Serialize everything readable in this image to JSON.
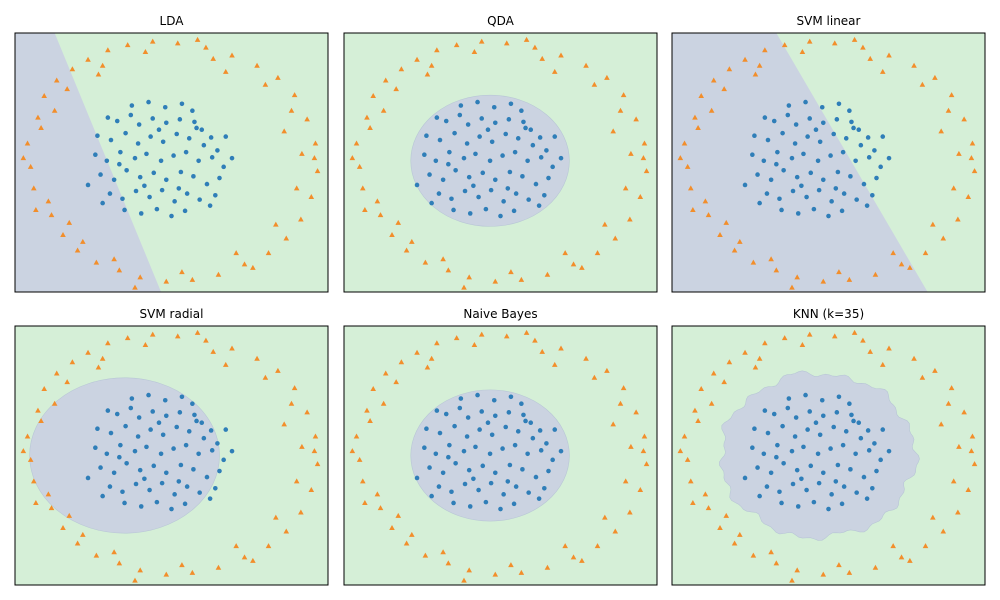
{
  "colors": {
    "region_inner": "#cbd3e1",
    "region_outer": "#d5efd7",
    "inner_points": "#2f7eb8",
    "outer_points": "#f28e2b",
    "frame": "#000000"
  },
  "chart_data": [
    {
      "type": "scatter",
      "title": "LDA",
      "boundary": "linear",
      "xlim": [
        -1.5,
        1.5
      ],
      "ylim": [
        -1.5,
        1.5
      ],
      "grid": false,
      "ticks": false,
      "line_points": [
        [
          -1.12,
          1.5
        ],
        [
          -0.1,
          -1.5
        ]
      ]
    },
    {
      "type": "scatter",
      "title": "QDA",
      "boundary": "ellipse",
      "xlim": [
        -1.5,
        1.5
      ],
      "ylim": [
        -1.5,
        1.5
      ],
      "grid": false,
      "ticks": false,
      "ellipse": {
        "cx": -0.1,
        "cy": 0.02,
        "rx": 0.76,
        "ry": 0.76
      }
    },
    {
      "type": "scatter",
      "title": "SVM linear",
      "boundary": "linear",
      "xlim": [
        -1.5,
        1.5
      ],
      "ylim": [
        -1.5,
        1.5
      ],
      "grid": false,
      "ticks": false,
      "line_points": [
        [
          -0.5,
          1.5
        ],
        [
          0.95,
          -1.5
        ]
      ]
    },
    {
      "type": "scatter",
      "title": "SVM radial",
      "boundary": "ellipse",
      "xlim": [
        -1.5,
        1.5
      ],
      "ylim": [
        -1.5,
        1.5
      ],
      "grid": false,
      "ticks": false,
      "ellipse": {
        "cx": -0.45,
        "cy": 0.0,
        "rx": 0.91,
        "ry": 0.9
      }
    },
    {
      "type": "scatter",
      "title": "Naive Bayes",
      "boundary": "ellipse",
      "xlim": [
        -1.5,
        1.5
      ],
      "ylim": [
        -1.5,
        1.5
      ],
      "grid": false,
      "ticks": false,
      "ellipse": {
        "cx": -0.1,
        "cy": 0.0,
        "rx": 0.76,
        "ry": 0.76
      }
    },
    {
      "type": "scatter",
      "title": "KNN (k=35)",
      "boundary": "blob",
      "xlim": [
        -1.5,
        1.5
      ],
      "ylim": [
        -1.5,
        1.5
      ],
      "grid": false,
      "ticks": false,
      "ellipse": {
        "cx": -0.1,
        "cy": 0.0,
        "rx": 0.93,
        "ry": 0.95
      }
    }
  ],
  "points": {
    "inner": [
      [
        -0.61,
        0.52
      ],
      [
        -0.52,
        0.48
      ],
      [
        -0.39,
        0.55
      ],
      [
        -0.31,
        0.44
      ],
      [
        -0.18,
        0.51
      ],
      [
        -0.05,
        0.46
      ],
      [
        0.08,
        0.5
      ],
      [
        0.22,
        0.47
      ],
      [
        0.29,
        0.38
      ],
      [
        0.38,
        0.29
      ],
      [
        -0.71,
        0.31
      ],
      [
        -0.58,
        0.26
      ],
      [
        -0.44,
        0.34
      ],
      [
        -0.32,
        0.22
      ],
      [
        -0.2,
        0.3
      ],
      [
        -0.08,
        0.24
      ],
      [
        0.05,
        0.33
      ],
      [
        0.17,
        0.28
      ],
      [
        0.31,
        0.2
      ],
      [
        0.44,
        0.14
      ],
      [
        -0.73,
        0.09
      ],
      [
        -0.62,
        0.02
      ],
      [
        -0.49,
        0.12
      ],
      [
        -0.35,
        0.05
      ],
      [
        -0.24,
        0.1
      ],
      [
        -0.1,
        0.02
      ],
      [
        0.02,
        0.08
      ],
      [
        0.14,
        0.12
      ],
      [
        0.26,
        0.02
      ],
      [
        0.39,
        0.06
      ],
      [
        0.5,
        -0.05
      ],
      [
        -0.68,
        -0.14
      ],
      [
        -0.55,
        -0.2
      ],
      [
        -0.43,
        -0.09
      ],
      [
        -0.3,
        -0.17
      ],
      [
        -0.17,
        -0.12
      ],
      [
        -0.05,
        -0.2
      ],
      [
        0.09,
        -0.11
      ],
      [
        0.21,
        -0.16
      ],
      [
        0.34,
        -0.25
      ],
      [
        0.46,
        -0.18
      ],
      [
        -0.59,
        -0.36
      ],
      [
        -0.47,
        -0.42
      ],
      [
        -0.34,
        -0.33
      ],
      [
        -0.21,
        -0.4
      ],
      [
        -0.09,
        -0.32
      ],
      [
        0.03,
        -0.45
      ],
      [
        0.15,
        -0.36
      ],
      [
        0.27,
        -0.43
      ],
      [
        0.37,
        -0.5
      ],
      [
        -0.45,
        -0.55
      ],
      [
        -0.29,
        -0.59
      ],
      [
        -0.14,
        -0.54
      ],
      [
        0.0,
        -0.62
      ],
      [
        0.13,
        -0.56
      ],
      [
        -0.38,
        0.66
      ],
      [
        -0.22,
        0.7
      ],
      [
        -0.06,
        0.64
      ],
      [
        0.1,
        0.68
      ],
      [
        0.2,
        0.6
      ],
      [
        -0.8,
        -0.26
      ],
      [
        -0.66,
        -0.47
      ],
      [
        0.58,
        0.05
      ],
      [
        0.52,
        0.3
      ],
      [
        -0.12,
        0.38
      ],
      [
        0.42,
        -0.38
      ],
      [
        -0.5,
        -0.02
      ],
      [
        0.07,
        -0.3
      ],
      [
        -0.26,
        -0.27
      ],
      [
        0.24,
        0.4
      ]
    ],
    "outer": [
      [
        -1.38,
        0.22
      ],
      [
        -1.35,
        -0.05
      ],
      [
        -1.32,
        -0.3
      ],
      [
        -1.28,
        0.52
      ],
      [
        -1.22,
        0.77
      ],
      [
        -1.15,
        -0.61
      ],
      [
        -1.1,
        0.95
      ],
      [
        -1.04,
        -0.84
      ],
      [
        -0.95,
        1.08
      ],
      [
        -0.9,
        -1.02
      ],
      [
        -0.8,
        1.19
      ],
      [
        -0.72,
        -1.16
      ],
      [
        -0.61,
        1.3
      ],
      [
        -0.5,
        -1.25
      ],
      [
        -0.42,
        1.36
      ],
      [
        -0.3,
        -1.33
      ],
      [
        -0.18,
        1.4
      ],
      [
        -0.05,
        -1.38
      ],
      [
        0.06,
        1.38
      ],
      [
        0.2,
        -1.36
      ],
      [
        0.33,
        1.33
      ],
      [
        0.45,
        -1.3
      ],
      [
        0.58,
        1.24
      ],
      [
        0.7,
        -1.18
      ],
      [
        0.82,
        1.12
      ],
      [
        0.93,
        -1.05
      ],
      [
        1.02,
        0.98
      ],
      [
        1.1,
        -0.88
      ],
      [
        1.18,
        0.78
      ],
      [
        1.24,
        -0.66
      ],
      [
        1.3,
        0.5
      ],
      [
        1.34,
        -0.4
      ],
      [
        1.38,
        0.22
      ],
      [
        1.4,
        -0.1
      ],
      [
        1.37,
        0.05
      ],
      [
        -1.25,
        0.4
      ],
      [
        -1.18,
        -0.45
      ],
      [
        -1.0,
        0.85
      ],
      [
        -0.85,
        -0.92
      ],
      [
        -0.66,
        1.12
      ],
      [
        -0.55,
        -1.12
      ],
      [
        -0.25,
        1.28
      ],
      [
        0.1,
        -1.27
      ],
      [
        0.4,
        1.2
      ],
      [
        0.62,
        -1.05
      ],
      [
        0.9,
        0.9
      ],
      [
        1.0,
        -0.72
      ],
      [
        1.15,
        0.6
      ],
      [
        1.2,
        -0.3
      ],
      [
        1.25,
        0.1
      ],
      [
        -1.42,
        0.05
      ],
      [
        -1.3,
        -0.55
      ],
      [
        -0.98,
        -0.7
      ],
      [
        -0.7,
        1.02
      ],
      [
        0.25,
        1.42
      ],
      [
        0.78,
        -1.22
      ],
      [
        1.08,
        0.36
      ],
      [
        -1.12,
        0.6
      ],
      [
        -0.35,
        -1.45
      ],
      [
        0.52,
        1.05
      ]
    ]
  }
}
